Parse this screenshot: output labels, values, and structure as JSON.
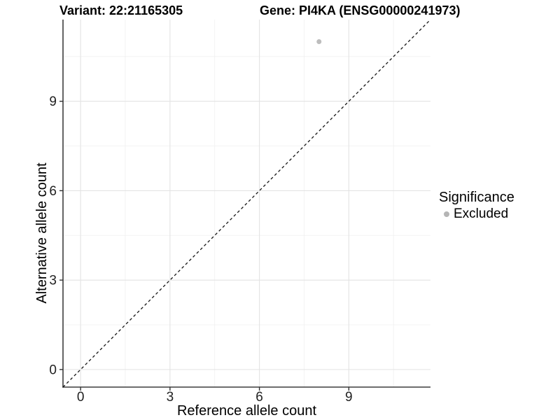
{
  "figure": {
    "title_variant": "Variant: 22:21165305",
    "title_gene": "Gene: PI4KA (ENSG00000241973)"
  },
  "chart_data": {
    "type": "scatter",
    "xlabel": "Reference allele count",
    "ylabel": "Alternative allele count",
    "xlim": [
      -0.59,
      11.74
    ],
    "ylim": [
      -0.59,
      11.74
    ],
    "xticks": [
      0,
      3,
      6,
      9
    ],
    "yticks": [
      0,
      3,
      6,
      9
    ],
    "xticks_minor": [
      1.5,
      4.5,
      7.5,
      10.5
    ],
    "yticks_minor": [
      1.5,
      4.5,
      7.5,
      10.5
    ],
    "grid": "major and minor gridlines, white panel background",
    "points": [
      {
        "x": 8,
        "y": 11,
        "series": "Excluded"
      }
    ],
    "reference_line": {
      "kind": "identity",
      "slope": 1,
      "intercept": 0,
      "style": "dashed"
    },
    "legend": {
      "title": "Significance",
      "position": "right",
      "items": [
        {
          "label": "Excluded",
          "color": "#b5b5b5"
        }
      ]
    }
  },
  "style": {
    "point_color": "#bdbdbd",
    "grid_major_color": "#e3e3e3",
    "grid_minor_color": "#f0f0f0",
    "axis_line_color": "#3d3d3d",
    "tick_color": "#333333",
    "ref_line_color": "#141414",
    "background": "#ffffff"
  }
}
